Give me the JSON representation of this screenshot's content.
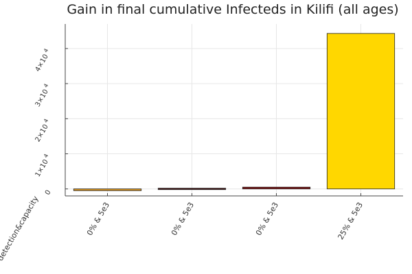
{
  "chart_data": {
    "type": "bar",
    "title": "Gain in final cumulative Infecteds in Kilifi (all ages)",
    "xlabel": "detection&capacity",
    "ylabel": "",
    "categories": [
      "0% & 5e3",
      "0% & 5e3",
      "0% & 5e3",
      "25% & 5e3"
    ],
    "values": [
      -500,
      -100,
      500,
      44300
    ],
    "colors": [
      "#D9941E",
      "#3A0A0A",
      "#7A0B0B",
      "#FFD700"
    ],
    "ylim": [
      -2000,
      47000
    ],
    "yticks": [
      0,
      10000,
      20000,
      30000,
      40000
    ],
    "ytick_labels": [
      {
        "base": "0",
        "exp": ""
      },
      {
        "base": "1×10",
        "exp": "4"
      },
      {
        "base": "2×10",
        "exp": "4"
      },
      {
        "base": "3×10",
        "exp": "4"
      },
      {
        "base": "4×10",
        "exp": "4"
      }
    ],
    "grid": true,
    "legend": "none"
  }
}
